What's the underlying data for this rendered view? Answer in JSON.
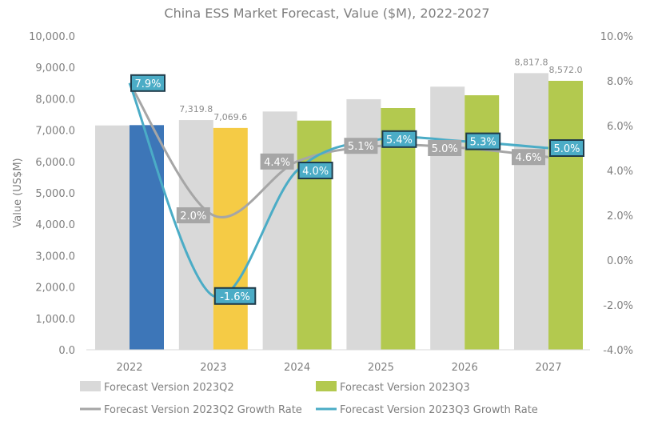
{
  "chart_data": {
    "type": "bar",
    "title": "China ESS Market Forecast, Value ($M), 2022-2027",
    "ylabel": "Value (US$M)",
    "categories": [
      "2022",
      "2023",
      "2024",
      "2025",
      "2026",
      "2027"
    ],
    "ylim": [
      0,
      10000
    ],
    "y2lim": [
      -4,
      10
    ],
    "yticks": [
      "0.0",
      "1,000.0",
      "2,000.0",
      "3,000.0",
      "4,000.0",
      "5,000.0",
      "6,000.0",
      "7,000.0",
      "8,000.0",
      "9,000.0",
      "10,000.0"
    ],
    "y2ticks": [
      "-4.0%",
      "-2.0%",
      "0.0%",
      "2.0%",
      "4.0%",
      "6.0%",
      "8.0%",
      "10.0%"
    ],
    "grid": false,
    "legend_placement": "bottom",
    "series": [
      {
        "name": "Forecast Version 2023Q2",
        "kind": "bar",
        "color": "#d9d9d9",
        "values": [
          7150,
          7319.8,
          7594,
          7985,
          8385,
          8817.8
        ],
        "labels": [
          null,
          "7,319.8",
          null,
          null,
          null,
          "8,817.8"
        ]
      },
      {
        "name": "Forecast Version 2023Q3",
        "kind": "bar",
        "color": "#b3c94f",
        "point_colors": [
          "#3d76b8",
          "#f5cb45",
          "#b3c94f",
          "#b3c94f",
          "#b3c94f",
          "#b3c94f"
        ],
        "values": [
          7160,
          7069.6,
          7304,
          7704,
          8112,
          8572.0
        ],
        "labels": [
          null,
          "7,069.6",
          null,
          null,
          null,
          "8,572.0"
        ]
      },
      {
        "name": "Forecast Version 2023Q2 Growth Rate",
        "kind": "line",
        "axis": "right",
        "color": "#a6a6a6",
        "values": [
          7.9,
          2.0,
          4.4,
          5.1,
          5.0,
          4.6
        ],
        "labels": [
          null,
          "2.0%",
          "4.4%",
          "5.1%",
          "5.0%",
          "4.6%"
        ]
      },
      {
        "name": "Forecast Version 2023Q3 Growth Rate",
        "kind": "line",
        "axis": "right",
        "color": "#4bacc6",
        "values": [
          7.9,
          -1.6,
          4.0,
          5.4,
          5.3,
          5.0
        ],
        "labels": [
          "7.9%",
          "-1.6%",
          "4.0%",
          "5.4%",
          "5.3%",
          "5.0%"
        ]
      }
    ]
  }
}
